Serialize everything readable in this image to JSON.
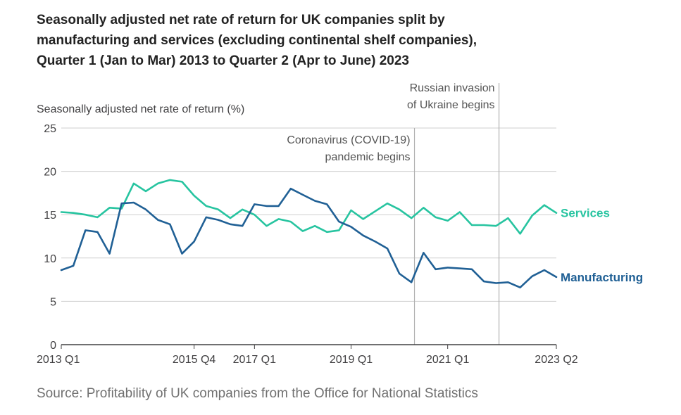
{
  "title_lines": [
    "Seasonally adjusted net rate of return for UK companies split by",
    "manufacturing and services (excluding continental shelf companies),",
    "Quarter 1 (Jan to Mar) 2013 to Quarter 2 (Apr to June) 2023"
  ],
  "source": "Source: Profitability of UK companies from the Office for National Statistics",
  "colors": {
    "manufacturing": "#206095",
    "services": "#27c4a0",
    "grid": "#cfcfcf",
    "axis": "#414042",
    "annotation_line": "#b0b0b0"
  },
  "chart_data": {
    "type": "line",
    "title": "Seasonally adjusted net rate of return for UK companies split by manufacturing and services (excluding continental shelf companies), Quarter 1 (Jan to Mar) 2013 to Quarter 2 (Apr to June) 2023",
    "ylabel": "Seasonally adjusted net rate of return (%)",
    "xlabel": "",
    "ylim": [
      0,
      25
    ],
    "yticks": [
      0,
      5,
      10,
      15,
      20,
      25
    ],
    "xtick_labels": [
      {
        "index": 0,
        "label": "2013 Q1"
      },
      {
        "index": 11,
        "label": "2015 Q4"
      },
      {
        "index": 16,
        "label": "2017 Q1"
      },
      {
        "index": 24,
        "label": "2019 Q1"
      },
      {
        "index": 32,
        "label": "2021 Q1"
      },
      {
        "index": 41,
        "label": "2023 Q2"
      }
    ],
    "grid": true,
    "legend": "direct labels at line ends",
    "x": [
      "2013 Q1",
      "2013 Q2",
      "2013 Q3",
      "2013 Q4",
      "2014 Q1",
      "2014 Q2",
      "2014 Q3",
      "2014 Q4",
      "2015 Q1",
      "2015 Q2",
      "2015 Q3",
      "2015 Q4",
      "2016 Q1",
      "2016 Q2",
      "2016 Q3",
      "2016 Q4",
      "2017 Q1",
      "2017 Q2",
      "2017 Q3",
      "2017 Q4",
      "2018 Q1",
      "2018 Q2",
      "2018 Q3",
      "2018 Q4",
      "2019 Q1",
      "2019 Q2",
      "2019 Q3",
      "2019 Q4",
      "2020 Q1",
      "2020 Q2",
      "2020 Q3",
      "2020 Q4",
      "2021 Q1",
      "2021 Q2",
      "2021 Q3",
      "2021 Q4",
      "2022 Q1",
      "2022 Q2",
      "2022 Q3",
      "2022 Q4",
      "2023 Q1",
      "2023 Q2"
    ],
    "series": [
      {
        "name": "Services",
        "color": "#27c4a0",
        "values": [
          15.3,
          15.2,
          15.0,
          14.7,
          15.8,
          15.7,
          18.6,
          17.7,
          18.6,
          19.0,
          18.8,
          17.2,
          16.0,
          15.6,
          14.6,
          15.6,
          15.0,
          13.7,
          14.5,
          14.2,
          13.1,
          13.7,
          13.0,
          13.2,
          15.5,
          14.5,
          15.4,
          16.3,
          15.6,
          14.6,
          15.8,
          14.7,
          14.3,
          15.3,
          13.8,
          13.8,
          13.7,
          14.6,
          12.8,
          14.9,
          16.1,
          15.2
        ]
      },
      {
        "name": "Manufacturing",
        "color": "#206095",
        "values": [
          8.6,
          9.1,
          13.2,
          13.0,
          10.5,
          16.3,
          16.4,
          15.6,
          14.4,
          13.9,
          10.5,
          11.9,
          14.7,
          14.4,
          13.9,
          13.7,
          16.2,
          16.0,
          16.0,
          18.0,
          17.3,
          16.6,
          16.2,
          14.2,
          13.6,
          12.6,
          11.9,
          11.1,
          8.2,
          7.2,
          10.6,
          8.7,
          8.9,
          8.8,
          8.7,
          7.3,
          7.1,
          7.2,
          6.6,
          7.9,
          8.6,
          7.8
        ]
      }
    ],
    "annotations": [
      {
        "index": 29.25,
        "lines": [
          "Coronavirus (COVID-19)",
          "pandemic begins"
        ]
      },
      {
        "index": 36.25,
        "lines": [
          "Russian invasion",
          "of Ukraine begins"
        ]
      }
    ]
  }
}
